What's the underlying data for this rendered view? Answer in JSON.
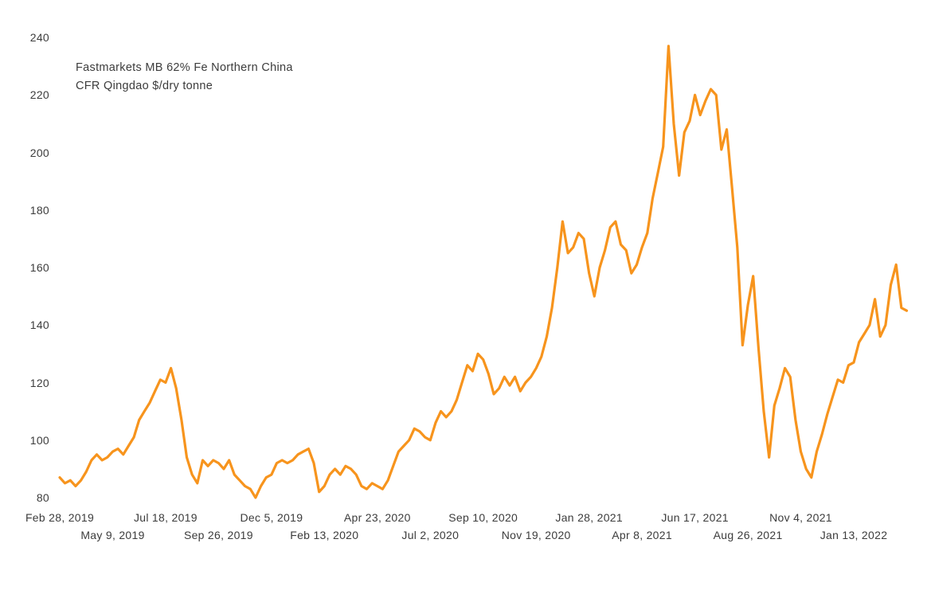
{
  "annotation": {
    "line1": "Fastmarkets MB 62% Fe Northern China",
    "line2": "CFR Qingdao $/dry tonne"
  },
  "chart_data": {
    "type": "line",
    "title": "Fastmarkets MB 62% Fe Northern China CFR Qingdao $/dry tonne",
    "ylabel": "$/dry tonne",
    "line_color": "#F7941D",
    "text_color": "#3c3c3c",
    "grid": false,
    "legend": "none",
    "ylim": [
      76,
      244
    ],
    "y_ticks": [
      80,
      100,
      120,
      140,
      160,
      180,
      200,
      220,
      240
    ],
    "x_ticks": [
      "Feb 28, 2019",
      "May 9, 2019",
      "Jul 18, 2019",
      "Sep 26, 2019",
      "Dec 5, 2019",
      "Feb 13, 2020",
      "Apr 23, 2020",
      "Jul 2, 2020",
      "Sep 10, 2020",
      "Nov 19, 2020",
      "Jan 28, 2021",
      "Apr 8, 2021",
      "Jun 17, 2021",
      "Aug 26, 2021",
      "Nov 4, 2021",
      "Jan 13, 2022"
    ],
    "x_tick_interval_days": 70,
    "x_tick_stagger": "alternating two rows",
    "start_date": "2019-02-28",
    "interval_days": 7,
    "values": [
      87,
      85,
      86,
      84,
      86,
      89,
      93,
      95,
      93,
      94,
      96,
      97,
      95,
      98,
      101,
      107,
      110,
      113,
      117,
      121,
      120,
      125,
      118,
      107,
      94,
      88,
      85,
      93,
      91,
      93,
      92,
      90,
      93,
      88,
      86,
      84,
      83,
      80,
      84,
      87,
      88,
      92,
      93,
      92,
      93,
      95,
      96,
      97,
      92,
      82,
      84,
      88,
      90,
      88,
      91,
      90,
      88,
      84,
      83,
      85,
      84,
      83,
      86,
      91,
      96,
      98,
      100,
      104,
      103,
      101,
      100,
      106,
      110,
      108,
      110,
      114,
      120,
      126,
      124,
      130,
      128,
      123,
      116,
      118,
      122,
      119,
      122,
      117,
      120,
      122,
      125,
      129,
      136,
      146,
      160,
      176,
      165,
      167,
      172,
      170,
      158,
      150,
      160,
      166,
      174,
      176,
      168,
      166,
      158,
      161,
      167,
      172,
      184,
      193,
      202,
      237,
      210,
      192,
      207,
      211,
      220,
      213,
      218,
      222,
      220,
      201,
      208,
      188,
      167,
      133,
      147,
      157,
      132,
      110,
      94,
      112,
      118,
      125,
      122,
      107,
      96,
      90,
      87,
      96,
      102,
      109,
      115,
      121,
      120,
      126,
      127,
      134,
      137,
      140,
      149,
      136,
      140,
      154,
      161,
      146,
      145
    ]
  }
}
